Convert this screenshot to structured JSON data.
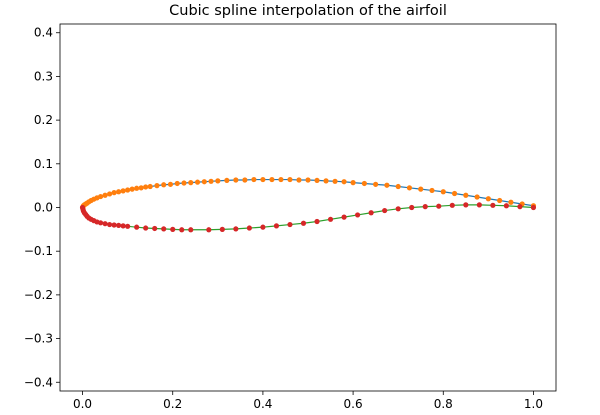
{
  "chart_data": {
    "type": "line",
    "title": "Cubic spline interpolation of the airfoil",
    "xlabel": "",
    "ylabel": "",
    "xlim": [
      -0.05,
      1.05
    ],
    "ylim": [
      -0.42,
      0.42
    ],
    "x_ticks": [
      "0.0",
      "0.2",
      "0.4",
      "0.6",
      "0.8",
      "1.0"
    ],
    "y_ticks": [
      "-0.4",
      "-0.3",
      "-0.2",
      "-0.1",
      "0.0",
      "0.1",
      "0.2",
      "0.3",
      "0.4"
    ],
    "grid": false,
    "legend": "none",
    "colors": {
      "upper_curve": "#1f77b4",
      "upper_points": "#ff7f0e",
      "lower_curve": "#2ca02c",
      "lower_points": "#d62728"
    },
    "upper_surface": {
      "x": [
        1.0,
        0.975,
        0.95,
        0.925,
        0.9,
        0.875,
        0.85,
        0.825,
        0.8,
        0.775,
        0.75,
        0.725,
        0.7,
        0.675,
        0.65,
        0.625,
        0.6,
        0.58,
        0.56,
        0.54,
        0.52,
        0.5,
        0.48,
        0.46,
        0.44,
        0.42,
        0.4,
        0.38,
        0.36,
        0.34,
        0.32,
        0.3,
        0.285,
        0.27,
        0.255,
        0.24,
        0.225,
        0.21,
        0.195,
        0.18,
        0.165,
        0.15,
        0.14,
        0.13,
        0.12,
        0.11,
        0.1,
        0.09,
        0.08,
        0.07,
        0.06,
        0.05,
        0.04,
        0.032,
        0.025,
        0.019,
        0.014,
        0.01,
        0.007,
        0.004,
        0.002,
        0.001,
        0.0
      ],
      "y": [
        0.004,
        0.008,
        0.012,
        0.016,
        0.02,
        0.024,
        0.028,
        0.032,
        0.036,
        0.039,
        0.042,
        0.045,
        0.048,
        0.051,
        0.053,
        0.055,
        0.057,
        0.059,
        0.06,
        0.061,
        0.062,
        0.063,
        0.063,
        0.064,
        0.064,
        0.064,
        0.064,
        0.064,
        0.063,
        0.063,
        0.062,
        0.061,
        0.06,
        0.059,
        0.058,
        0.057,
        0.056,
        0.055,
        0.053,
        0.052,
        0.05,
        0.048,
        0.047,
        0.045,
        0.044,
        0.042,
        0.04,
        0.038,
        0.036,
        0.034,
        0.031,
        0.028,
        0.025,
        0.022,
        0.019,
        0.016,
        0.013,
        0.01,
        0.008,
        0.006,
        0.004,
        0.002,
        0.0
      ]
    },
    "lower_surface": {
      "x": [
        0.0,
        0.001,
        0.002,
        0.004,
        0.007,
        0.01,
        0.014,
        0.019,
        0.025,
        0.032,
        0.04,
        0.05,
        0.06,
        0.07,
        0.08,
        0.09,
        0.1,
        0.12,
        0.14,
        0.16,
        0.18,
        0.2,
        0.22,
        0.24,
        0.28,
        0.31,
        0.34,
        0.37,
        0.4,
        0.43,
        0.46,
        0.49,
        0.52,
        0.55,
        0.58,
        0.61,
        0.64,
        0.67,
        0.7,
        0.73,
        0.76,
        0.79,
        0.82,
        0.85,
        0.88,
        0.91,
        0.94,
        0.97,
        1.0
      ],
      "y": [
        0.0,
        -0.004,
        -0.008,
        -0.012,
        -0.016,
        -0.02,
        -0.024,
        -0.027,
        -0.03,
        -0.033,
        -0.035,
        -0.037,
        -0.039,
        -0.04,
        -0.041,
        -0.042,
        -0.043,
        -0.045,
        -0.047,
        -0.048,
        -0.049,
        -0.05,
        -0.051,
        -0.051,
        -0.051,
        -0.05,
        -0.049,
        -0.047,
        -0.045,
        -0.042,
        -0.039,
        -0.036,
        -0.032,
        -0.027,
        -0.022,
        -0.017,
        -0.012,
        -0.007,
        -0.003,
        0.0,
        0.002,
        0.003,
        0.005,
        0.006,
        0.006,
        0.005,
        0.004,
        0.002,
        0.0
      ]
    }
  }
}
